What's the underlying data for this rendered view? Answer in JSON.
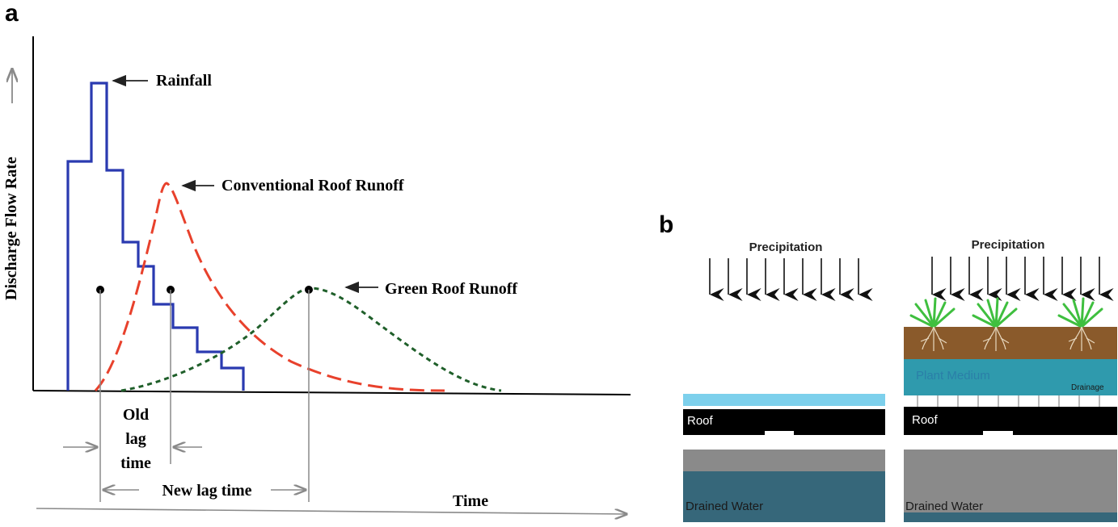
{
  "panel_a": {
    "panel_label": "a",
    "y_axis_label": "Discharge Flow Rate",
    "x_axis_label": "Time",
    "labels": {
      "rainfall": "Rainfall",
      "conventional": "Conventional Roof Runoff",
      "green": "Green Roof Runoff",
      "old_lag_1": "Old",
      "old_lag_2": "lag",
      "old_lag_3": "time",
      "new_lag": "New lag time"
    },
    "colors": {
      "rainfall": "#2a3ab0",
      "conventional": "#e8412c",
      "green": "#1f5f2a",
      "axis": "#000000",
      "guide": "#8a8a8a"
    }
  },
  "panel_b": {
    "panel_label": "b",
    "left": {
      "precipitation": "Precipitation",
      "roof": "Roof",
      "drained_water": "Drained Water"
    },
    "right": {
      "precipitation": "Precipitation",
      "plant_medium": "Plant Medium",
      "drainage": "Drainage",
      "roof": "Roof",
      "drained_water": "Drained Water"
    },
    "colors": {
      "water_film": "#7dd0ec",
      "roof": "#000000",
      "gray": "#8a8a8a",
      "drained_water": "#36677a",
      "soil": "#8a5a2b",
      "plant_medium": "#2f9aad",
      "plant": "#3fbf3f"
    }
  }
}
